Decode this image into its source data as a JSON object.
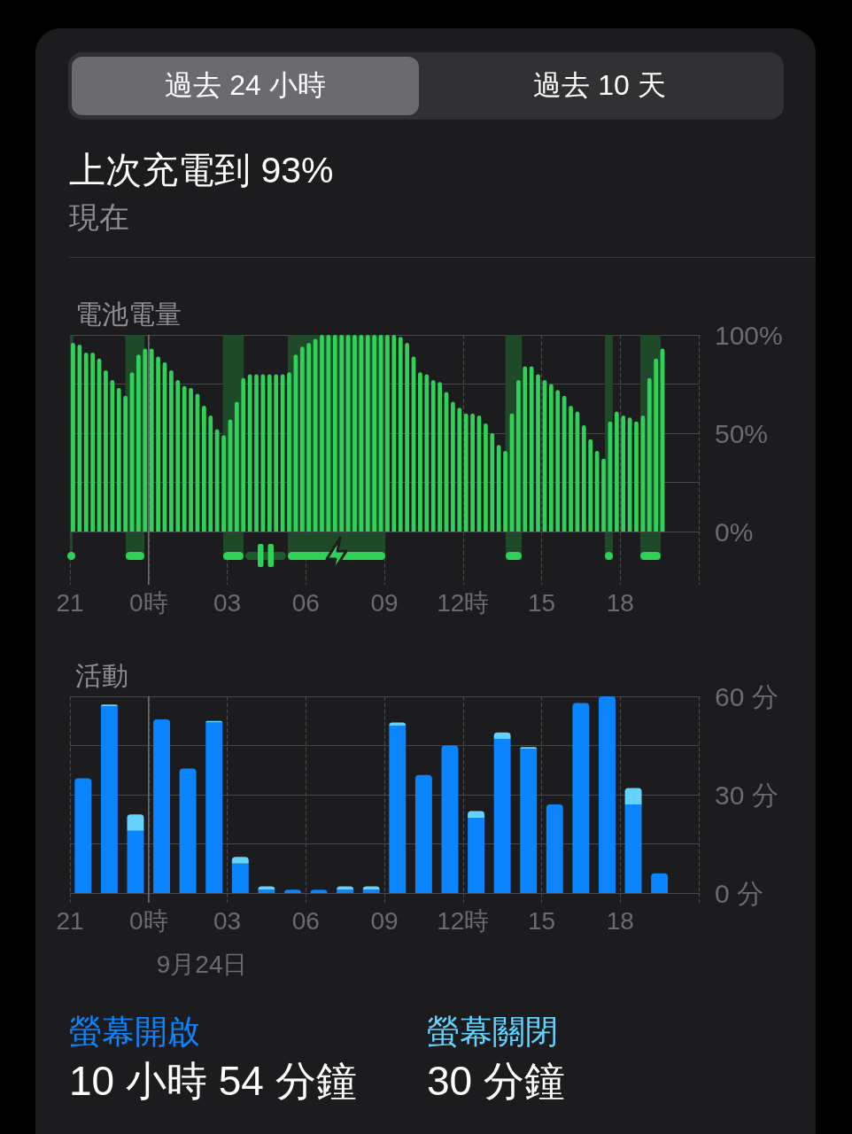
{
  "chart_data": [
    {
      "type": "other",
      "title": "上次充電到 93%",
      "subtitle": "現在",
      "annotations": [
        "過去 24 小時",
        "過去 10 天"
      ]
    },
    {
      "type": "bar",
      "title": "電池電量",
      "x": [
        "--09-23T21:07",
        "--09-23T21:22",
        "--09-23T21:37",
        "--09-23T21:52",
        "--09-23T22:07",
        "--09-23T22:22",
        "--09-23T22:37",
        "--09-23T22:52",
        "--09-23T23:07",
        "--09-23T23:22",
        "--09-23T23:37",
        "--09-23T23:52",
        "--09-24T00:07",
        "--09-24T00:22",
        "--09-24T00:37",
        "--09-24T00:52",
        "--09-24T01:07",
        "--09-24T01:22",
        "--09-24T01:37",
        "--09-24T01:52",
        "--09-24T02:07",
        "--09-24T02:22",
        "--09-24T02:37",
        "--09-24T02:52",
        "--09-24T03:07",
        "--09-24T03:22",
        "--09-24T03:37",
        "--09-24T03:52",
        "--09-24T04:07",
        "--09-24T04:22",
        "--09-24T04:37",
        "--09-24T04:52",
        "--09-24T05:07",
        "--09-24T05:22",
        "--09-24T05:37",
        "--09-24T05:52",
        "--09-24T06:07",
        "--09-24T06:22",
        "--09-24T06:37",
        "--09-24T06:52",
        "--09-24T07:07",
        "--09-24T07:22",
        "--09-24T07:37",
        "--09-24T07:52",
        "--09-24T08:07",
        "--09-24T08:22",
        "--09-24T08:37",
        "--09-24T08:52",
        "--09-24T09:07",
        "--09-24T09:22",
        "--09-24T09:37",
        "--09-24T09:52",
        "--09-24T10:07",
        "--09-24T10:22",
        "--09-24T10:37",
        "--09-24T10:52",
        "--09-24T11:07",
        "--09-24T11:22",
        "--09-24T11:37",
        "--09-24T11:52",
        "--09-24T12:07",
        "--09-24T12:22",
        "--09-24T12:37",
        "--09-24T12:52",
        "--09-24T13:07",
        "--09-24T13:22",
        "--09-24T13:37",
        "--09-24T13:52",
        "--09-24T14:07",
        "--09-24T14:22",
        "--09-24T14:37",
        "--09-24T14:52",
        "--09-24T15:07",
        "--09-24T15:22",
        "--09-24T15:37",
        "--09-24T15:52",
        "--09-24T16:07",
        "--09-24T16:22",
        "--09-24T16:37",
        "--09-24T16:52",
        "--09-24T17:07",
        "--09-24T17:22",
        "--09-24T17:37",
        "--09-24T17:52",
        "--09-24T18:07",
        "--09-24T18:22",
        "--09-24T18:37",
        "--09-24T18:52",
        "--09-24T19:07",
        "--09-24T19:22",
        "--09-24T19:37"
      ],
      "values": [
        96,
        95,
        91,
        91,
        88,
        82,
        77,
        73,
        69,
        81,
        90,
        93,
        93,
        89,
        86,
        82,
        77,
        74,
        73,
        70,
        64,
        59,
        52,
        49,
        57,
        66,
        78,
        80,
        80,
        80,
        80,
        80,
        80,
        81,
        90,
        94,
        96,
        98,
        100,
        100,
        100,
        100,
        100,
        100,
        100,
        100,
        100,
        100,
        100,
        100,
        99,
        96,
        89,
        81,
        80,
        77,
        76,
        71,
        66,
        63,
        60,
        60,
        59,
        55,
        50,
        44,
        41,
        60,
        77,
        84,
        84,
        80,
        77,
        75,
        72,
        69,
        64,
        61,
        54,
        47,
        41,
        37,
        56,
        61,
        59,
        58,
        56,
        59,
        78,
        88,
        93
      ],
      "color": "#30d158",
      "xlim": [
        "--09-23T21:00",
        "--09-24T21:00"
      ],
      "xticks": [
        {
          "value": "--09-23T21:00",
          "label": "21"
        },
        {
          "value": "--09-24T00:00",
          "label": "0時"
        },
        {
          "value": "--09-24T03:00",
          "label": "03"
        },
        {
          "value": "--09-24T06:00",
          "label": "06"
        },
        {
          "value": "--09-24T09:00",
          "label": "09"
        },
        {
          "value": "--09-24T12:00",
          "label": "12時"
        },
        {
          "value": "--09-24T15:00",
          "label": "15"
        },
        {
          "value": "--09-24T18:00",
          "label": "18"
        },
        {
          "value": "--09-24T21:00",
          "label": null
        }
      ],
      "ylim": [
        0,
        100
      ],
      "yticks": [
        {
          "value": 0,
          "label": "0%"
        },
        {
          "value": 25,
          "label": null
        },
        {
          "value": 50,
          "label": "50%"
        },
        {
          "value": 75,
          "label": null
        },
        {
          "value": 100,
          "label": "100%"
        }
      ],
      "grid": true,
      "bands": [
        {
          "axis": "x",
          "from": "--09-23T21:00",
          "to": "--09-23T21:07",
          "color": "#1f4a29"
        },
        {
          "axis": "x",
          "from": "--09-23T23:07",
          "to": "--09-23T23:51",
          "color": "#1f4a29"
        },
        {
          "axis": "x",
          "from": "--09-24T02:50",
          "to": "--09-24T03:38",
          "color": "#1f4a29"
        },
        {
          "axis": "x",
          "from": "--09-24T05:19",
          "to": "--09-24T09:02",
          "color": "#1f4a29"
        },
        {
          "axis": "x",
          "from": "--09-24T13:37",
          "to": "--09-24T14:15",
          "color": "#1f4a29"
        },
        {
          "axis": "x",
          "from": "--09-24T17:25",
          "to": "--09-24T17:43",
          "color": "#1f4a29"
        },
        {
          "axis": "x",
          "from": "--09-24T18:46",
          "to": "--09-24T19:33",
          "color": "#1f4a29"
        }
      ],
      "ref_lines": [
        {
          "axis": "x",
          "value": "--09-24T00:00",
          "line_style": "solid",
          "color": "#6c6c70"
        }
      ]
    },
    {
      "type": "bar",
      "title": "活動",
      "stacked": true,
      "x": [
        "--09-23T21:30",
        "--09-23T22:30",
        "--09-23T23:30",
        "--09-24T00:30",
        "--09-24T01:30",
        "--09-24T02:30",
        "--09-24T03:30",
        "--09-24T04:30",
        "--09-24T05:30",
        "--09-24T06:30",
        "--09-24T07:30",
        "--09-24T08:30",
        "--09-24T09:30",
        "--09-24T10:30",
        "--09-24T11:30",
        "--09-24T12:30",
        "--09-24T13:30",
        "--09-24T14:30",
        "--09-24T15:30",
        "--09-24T16:30",
        "--09-24T17:30",
        "--09-24T18:30",
        "--09-24T19:30"
      ],
      "series": [
        {
          "name": "螢幕開啟",
          "color": "#0a84ff",
          "values": [
            35,
            57,
            19,
            53,
            38,
            52,
            9,
            1,
            1,
            1,
            1,
            1,
            51,
            36,
            45,
            23,
            47,
            44,
            27,
            58,
            60,
            27,
            6
          ]
        },
        {
          "name": "螢幕關閉",
          "color": "#64d2ff",
          "values": [
            null,
            0.5,
            5,
            null,
            null,
            0.5,
            2,
            1,
            null,
            null,
            1,
            1,
            1,
            null,
            null,
            2,
            2,
            0.5,
            null,
            null,
            null,
            5,
            null
          ]
        }
      ],
      "xlim": [
        "--09-23T21:00",
        "--09-24T21:00"
      ],
      "xticks": [
        {
          "value": "--09-23T21:00",
          "label": "21"
        },
        {
          "value": "--09-24T00:00",
          "label": "0時"
        },
        {
          "value": "--09-24T03:00",
          "label": "03"
        },
        {
          "value": "--09-24T06:00",
          "label": "06"
        },
        {
          "value": "--09-24T09:00",
          "label": "09"
        },
        {
          "value": "--09-24T12:00",
          "label": "12時"
        },
        {
          "value": "--09-24T15:00",
          "label": "15"
        },
        {
          "value": "--09-24T18:00",
          "label": "18"
        },
        {
          "value": "--09-24T21:00",
          "label": null
        }
      ],
      "ylim": [
        0,
        60
      ],
      "yticks": [
        {
          "value": 0,
          "label": "0 分"
        },
        {
          "value": 15,
          "label": null
        },
        {
          "value": 30,
          "label": "30 分"
        },
        {
          "value": 45,
          "label": null
        },
        {
          "value": 60,
          "label": "60 分"
        }
      ],
      "grid": true,
      "legend": "bottom",
      "ref_lines": [
        {
          "axis": "x",
          "value": "--09-24T00:00",
          "label": "9月24日",
          "line_style": "solid",
          "color": "#6c6c70"
        }
      ],
      "annotations": [
        "10 小時 54 分鐘",
        "30 分鐘"
      ]
    }
  ]
}
